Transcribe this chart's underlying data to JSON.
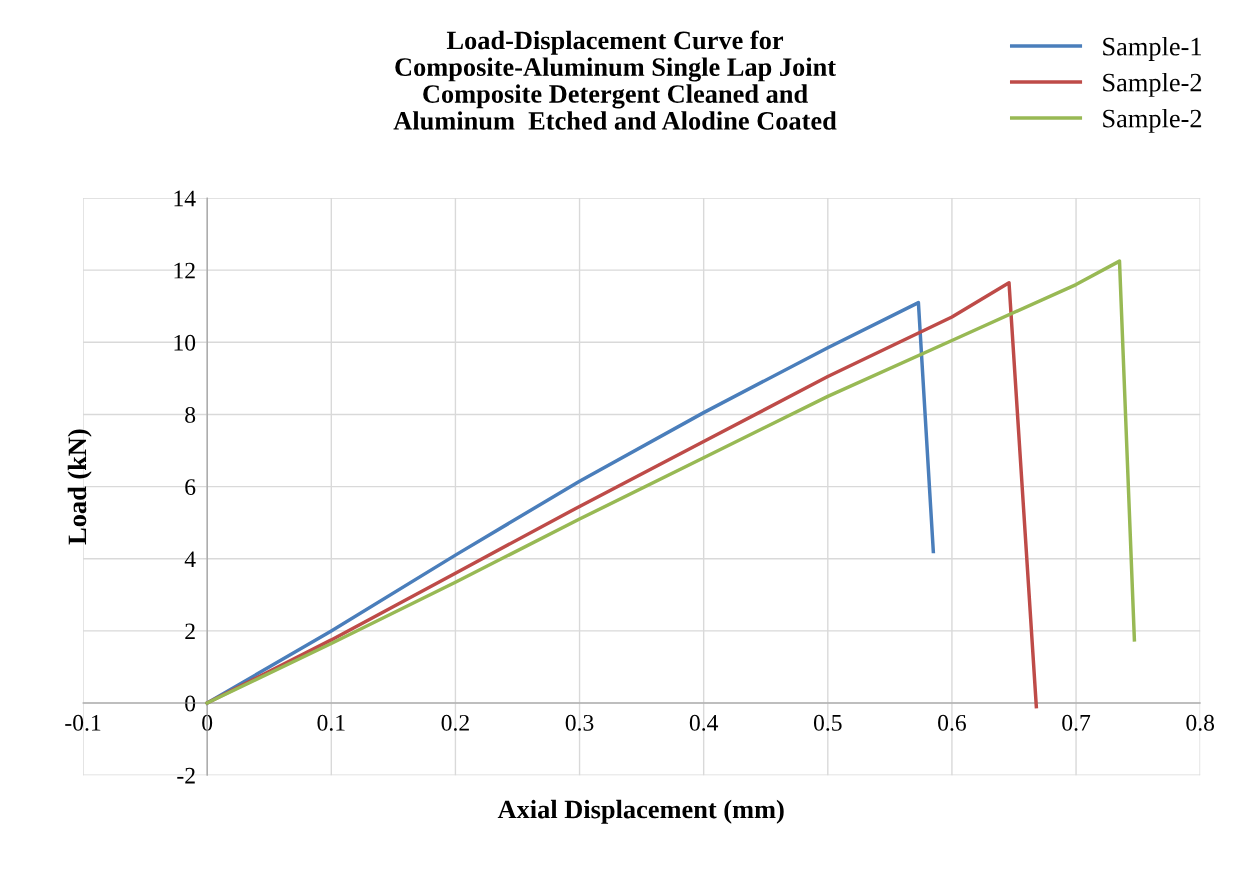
{
  "chart_data": {
    "type": "line",
    "title": "Load-Displacement Curve for\nComposite-Aluminum Single Lap Joint\nComposite Detergent Cleaned and\nAluminum  Etched and Alodine Coated",
    "xlabel": "Axial Displacement (mm)",
    "ylabel": "Load (kN)",
    "xlim": [
      -0.1,
      0.8
    ],
    "xticks": [
      -0.1,
      0,
      0.1,
      0.2,
      0.3,
      0.4,
      0.5,
      0.6,
      0.7,
      0.8
    ],
    "ylim": [
      -2,
      14
    ],
    "yticks": [
      -2,
      0,
      2,
      4,
      6,
      8,
      10,
      12,
      14
    ],
    "grid": true,
    "legend": "top right",
    "marker": "none",
    "line_style": "solid",
    "series": [
      {
        "name": "Sample-1",
        "color": "#4a7ebb",
        "x": [
          0,
          0.1,
          0.2,
          0.3,
          0.4,
          0.5,
          0.573,
          0.585
        ],
        "values": [
          0,
          2.0,
          4.1,
          6.15,
          8.05,
          9.85,
          11.1,
          4.2
        ]
      },
      {
        "name": "Sample-2",
        "color": "#be4b48",
        "x": [
          0,
          0.1,
          0.2,
          0.3,
          0.4,
          0.5,
          0.6,
          0.646,
          0.668
        ],
        "values": [
          0,
          1.75,
          3.6,
          5.45,
          7.25,
          9.05,
          10.7,
          11.65,
          -0.1
        ]
      },
      {
        "name": "Sample-2",
        "color": "#98b954",
        "x": [
          0,
          0.1,
          0.2,
          0.3,
          0.4,
          0.5,
          0.6,
          0.7,
          0.735,
          0.747
        ],
        "values": [
          0,
          1.65,
          3.35,
          5.1,
          6.8,
          8.5,
          10.05,
          11.6,
          12.25,
          1.75
        ]
      }
    ]
  }
}
